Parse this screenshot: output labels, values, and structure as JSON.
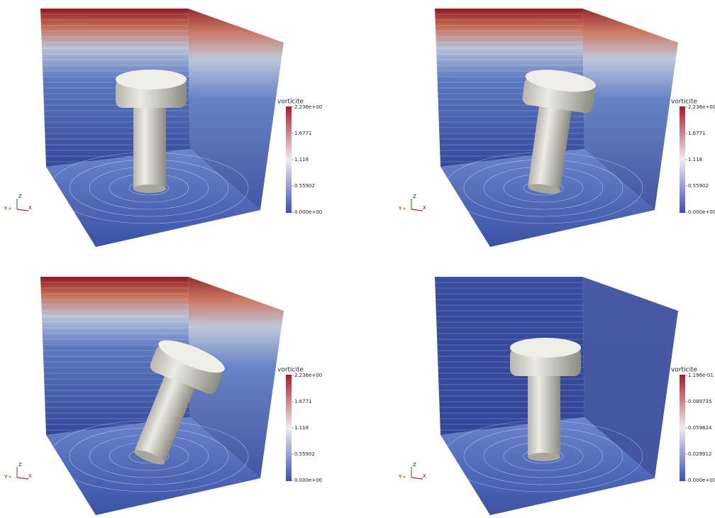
{
  "panels": [
    {
      "colorbar": {
        "title": "vorticite",
        "labels": [
          "2.236e+00",
          "1.6771",
          "1.118",
          "0.55902",
          "0.000e+00"
        ]
      },
      "axes": [
        "Z",
        "Y",
        "X"
      ]
    },
    {
      "colorbar": {
        "title": "vorticite",
        "labels": [
          "2.236e+00",
          "1.6771",
          "1.118",
          "0.55902",
          "0.000e+00"
        ]
      },
      "axes": [
        "Z",
        "Y",
        "X"
      ]
    },
    {
      "colorbar": {
        "title": "vorticite",
        "labels": [
          "2.236e+00",
          "1.6771",
          "1.118",
          "0.55902",
          "0.000e+00"
        ]
      },
      "axes": [
        "Z",
        "Y",
        "X"
      ]
    },
    {
      "colorbar": {
        "title": "vorticite",
        "labels": [
          "1.196e-01",
          "0.089735",
          "0.059824",
          "0.029912",
          "0.000e+00"
        ]
      },
      "axes": [
        "Z",
        "Y",
        "X"
      ]
    }
  ]
}
